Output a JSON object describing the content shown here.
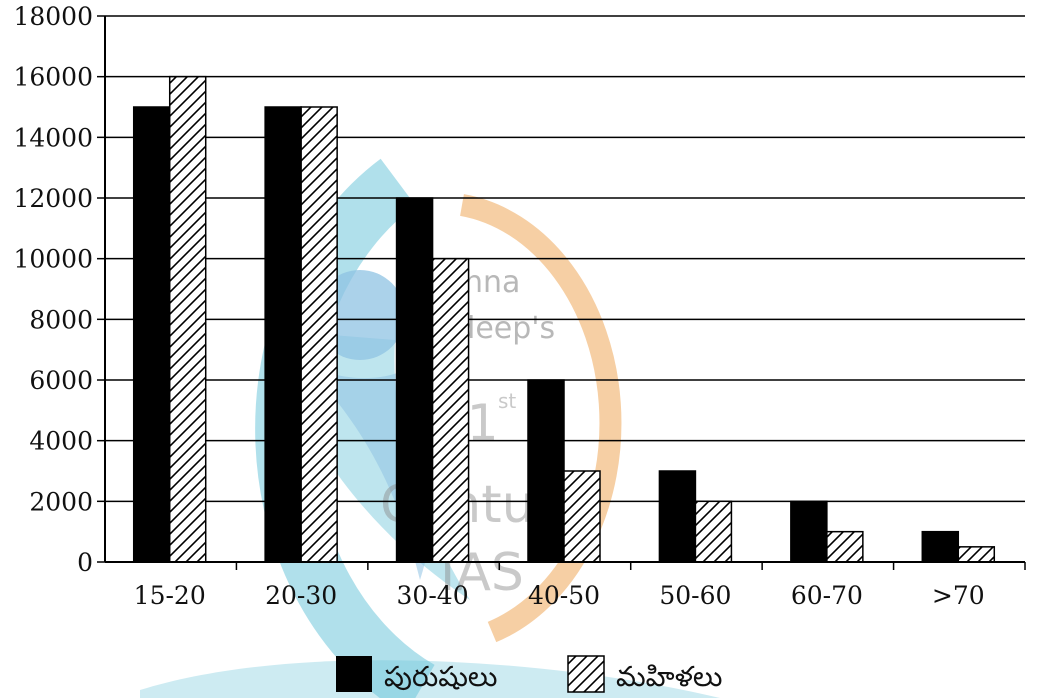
{
  "chart_data": {
    "type": "bar",
    "title": "",
    "xlabel": "",
    "ylabel": "",
    "categories": [
      "15-20",
      "20-30",
      "30-40",
      "40-50",
      "50-60",
      "60-70",
      ">70"
    ],
    "series": [
      {
        "name": "పురుషులు",
        "pattern": "solid",
        "values": [
          15000,
          15000,
          12000,
          6000,
          3000,
          2000,
          1000
        ]
      },
      {
        "name": "మహిళలు",
        "pattern": "hatched",
        "values": [
          16000,
          15000,
          10000,
          3000,
          2000,
          1000,
          500
        ]
      }
    ],
    "ylim": [
      0,
      18000
    ],
    "yticks": [
      0,
      2000,
      4000,
      6000,
      8000,
      10000,
      12000,
      14000,
      16000,
      18000
    ],
    "grid": true,
    "legend_position": "bottom-center"
  },
  "watermark": {
    "lines": [
      "Krishna",
      "Pradeep's",
      "21",
      "st",
      "Century",
      "IAS"
    ],
    "colors": {
      "blue": "#6fc6da",
      "orange": "#f3bf85",
      "figure": "#8fc3e3"
    }
  },
  "colors": {
    "bar_solid": "#000000",
    "hatch": "#000000",
    "grid": "#000000",
    "background": "#ffffff"
  }
}
